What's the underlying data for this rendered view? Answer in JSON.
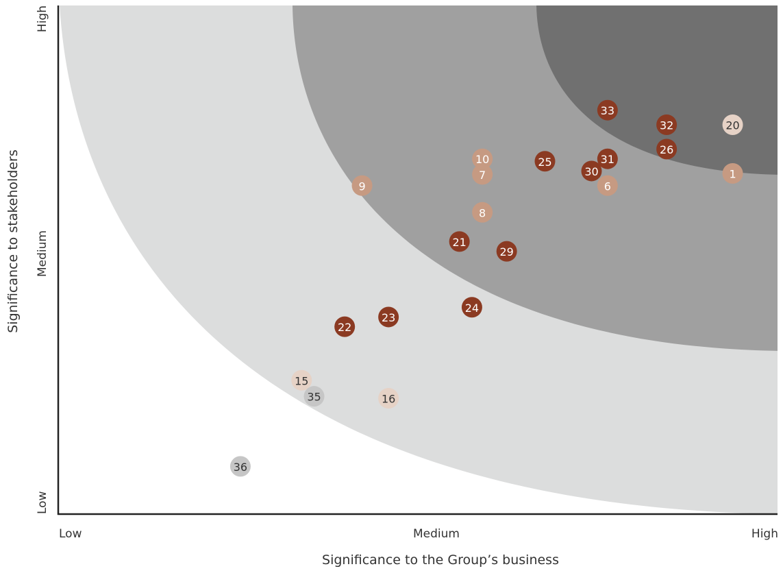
{
  "chart_data": {
    "type": "scatter",
    "xlabel": "Significance to the Group’s business",
    "ylabel": "Significance to stakeholders",
    "x_ticks": [
      "Low",
      "Medium",
      "High"
    ],
    "y_ticks": [
      "Low",
      "Medium",
      "High"
    ],
    "xlim": [
      0,
      1
    ],
    "ylim": [
      0,
      1
    ],
    "grid": false,
    "zones": [
      {
        "level": "light",
        "color": "#dcdddd"
      },
      {
        "level": "medium",
        "color": "#a0a0a0"
      },
      {
        "level": "dark",
        "color": "#707070"
      }
    ],
    "points": [
      {
        "label": "33",
        "x": 0.79,
        "y": 0.83,
        "color": "#8b3a22",
        "text_color": "#ffffff"
      },
      {
        "label": "32",
        "x": 0.875,
        "y": 0.8,
        "color": "#8b3a22",
        "text_color": "#ffffff"
      },
      {
        "label": "20",
        "x": 0.97,
        "y": 0.8,
        "color": "#e6d2c6",
        "text_color": "#333333"
      },
      {
        "label": "26",
        "x": 0.875,
        "y": 0.75,
        "color": "#8b3a22",
        "text_color": "#ffffff"
      },
      {
        "label": "10",
        "x": 0.61,
        "y": 0.73,
        "color": "#c69a82",
        "text_color": "#ffffff"
      },
      {
        "label": "25",
        "x": 0.7,
        "y": 0.725,
        "color": "#8b3a22",
        "text_color": "#ffffff"
      },
      {
        "label": "31",
        "x": 0.79,
        "y": 0.73,
        "color": "#8b3a22",
        "text_color": "#ffffff"
      },
      {
        "label": "30",
        "x": 0.767,
        "y": 0.705,
        "color": "#8b3a22",
        "text_color": "#ffffff"
      },
      {
        "label": "1",
        "x": 0.97,
        "y": 0.7,
        "color": "#c69a82",
        "text_color": "#ffffff"
      },
      {
        "label": "7",
        "x": 0.61,
        "y": 0.698,
        "color": "#c69a82",
        "text_color": "#ffffff"
      },
      {
        "label": "9",
        "x": 0.437,
        "y": 0.675,
        "color": "#c69a82",
        "text_color": "#ffffff"
      },
      {
        "label": "6",
        "x": 0.79,
        "y": 0.675,
        "color": "#c69a82",
        "text_color": "#ffffff"
      },
      {
        "label": "8",
        "x": 0.61,
        "y": 0.62,
        "color": "#c69a82",
        "text_color": "#ffffff"
      },
      {
        "label": "21",
        "x": 0.577,
        "y": 0.56,
        "color": "#8b3a22",
        "text_color": "#ffffff"
      },
      {
        "label": "29",
        "x": 0.645,
        "y": 0.54,
        "color": "#8b3a22",
        "text_color": "#ffffff"
      },
      {
        "label": "24",
        "x": 0.595,
        "y": 0.425,
        "color": "#8b3a22",
        "text_color": "#ffffff"
      },
      {
        "label": "23",
        "x": 0.475,
        "y": 0.405,
        "color": "#8b3a22",
        "text_color": "#ffffff"
      },
      {
        "label": "22",
        "x": 0.412,
        "y": 0.385,
        "color": "#8b3a22",
        "text_color": "#ffffff"
      },
      {
        "label": "15",
        "x": 0.35,
        "y": 0.275,
        "color": "#e6d2c6",
        "text_color": "#333333"
      },
      {
        "label": "35",
        "x": 0.368,
        "y": 0.242,
        "color": "#c6c6c6",
        "text_color": "#333333"
      },
      {
        "label": "16",
        "x": 0.475,
        "y": 0.238,
        "color": "#e6d2c6",
        "text_color": "#333333"
      },
      {
        "label": "36",
        "x": 0.262,
        "y": 0.098,
        "color": "#c6c6c6",
        "text_color": "#333333"
      }
    ]
  }
}
